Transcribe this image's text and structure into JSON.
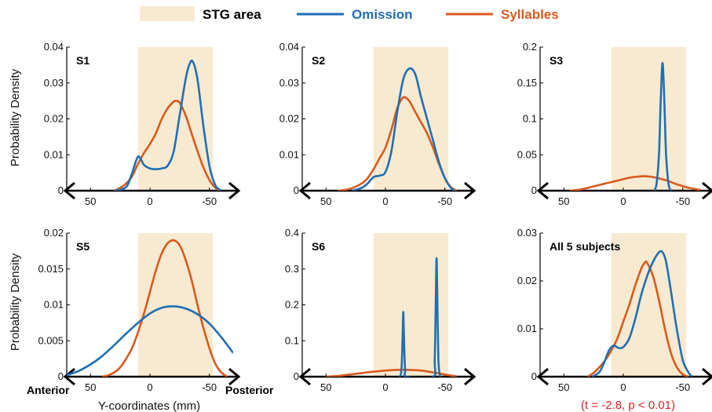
{
  "legend": {
    "stg_label": "STG area",
    "omission_label": "Omission",
    "syllables_label": "Syllables"
  },
  "colors": {
    "stg_area": "#f8ead0",
    "omission": "#1f6fb5",
    "syllables": "#d95a1e",
    "stats": "#e0201c"
  },
  "labels": {
    "y_axis": "Probability Density",
    "x_axis": "Y-coordinates (mm)",
    "anterior": "Anterior",
    "posterior": "Posterior",
    "stats": "(t = -2.8, p < 0.01)"
  },
  "chart_data": [
    {
      "title": "S1",
      "type": "line",
      "xlim": [
        70,
        -70
      ],
      "xticks": [
        50,
        0,
        -50
      ],
      "xtick_labels": [
        "50",
        "0",
        "-50"
      ],
      "ylim": [
        0,
        0.04
      ],
      "yticks": [
        0,
        0.01,
        0.02,
        0.03,
        0.04
      ],
      "ytick_labels": [
        "0",
        "0.01",
        "0.02",
        "0.03",
        "0.04"
      ],
      "stg_area": [
        10,
        -53
      ],
      "series": [
        {
          "name": "Omission",
          "x": [
            29,
            20,
            16,
            12,
            10,
            8,
            5,
            0,
            -5,
            -10,
            -15,
            -20,
            -25,
            -30,
            -33,
            -36,
            -40,
            -45,
            -50,
            -55,
            -60
          ],
          "values": [
            0,
            0.001,
            0.004,
            0.008,
            0.0095,
            0.009,
            0.0072,
            0.0062,
            0.006,
            0.0062,
            0.007,
            0.011,
            0.021,
            0.031,
            0.035,
            0.036,
            0.031,
            0.018,
            0.007,
            0.0015,
            0
          ]
        },
        {
          "name": "Syllables",
          "x": [
            30,
            25,
            20,
            15,
            10,
            5,
            0,
            -5,
            -10,
            -15,
            -20,
            -22,
            -25,
            -30,
            -35,
            -40,
            -45,
            -50,
            -55,
            -58
          ],
          "values": [
            0,
            0.0008,
            0.002,
            0.004,
            0.0075,
            0.0105,
            0.013,
            0.016,
            0.02,
            0.023,
            0.0248,
            0.025,
            0.0245,
            0.021,
            0.016,
            0.011,
            0.0065,
            0.003,
            0.0008,
            0
          ]
        }
      ]
    },
    {
      "title": "S2",
      "type": "line",
      "xlim": [
        70,
        -70
      ],
      "xticks": [
        50,
        0,
        -50
      ],
      "xtick_labels": [
        "50",
        "0",
        "-50"
      ],
      "ylim": [
        0,
        0.04
      ],
      "yticks": [
        0,
        0.01,
        0.02,
        0.03,
        0.04
      ],
      "ytick_labels": [
        "0",
        "0.01",
        "0.02",
        "0.03",
        "0.04"
      ],
      "stg_area": [
        10,
        -53
      ],
      "series": [
        {
          "name": "Omission",
          "x": [
            28,
            20,
            15,
            10,
            5,
            0,
            -5,
            -10,
            -15,
            -20,
            -25,
            -30,
            -35,
            -40,
            -45,
            -50,
            -55,
            -58
          ],
          "values": [
            0,
            0.0008,
            0.002,
            0.0038,
            0.0042,
            0.0052,
            0.011,
            0.022,
            0.031,
            0.034,
            0.0325,
            0.026,
            0.02,
            0.014,
            0.008,
            0.0035,
            0.0008,
            0
          ]
        },
        {
          "name": "Syllables",
          "x": [
            40,
            30,
            20,
            15,
            10,
            5,
            0,
            -5,
            -10,
            -15,
            -20,
            -25,
            -30,
            -35,
            -40,
            -45,
            -50,
            -55,
            -60
          ],
          "values": [
            0,
            0.0005,
            0.002,
            0.0035,
            0.006,
            0.009,
            0.012,
            0.017,
            0.023,
            0.026,
            0.025,
            0.022,
            0.019,
            0.016,
            0.012,
            0.0075,
            0.0035,
            0.001,
            0
          ]
        }
      ]
    },
    {
      "title": "S3",
      "type": "line",
      "xlim": [
        70,
        -70
      ],
      "xticks": [
        50,
        0,
        -50
      ],
      "xtick_labels": [
        "50",
        "0",
        "-50"
      ],
      "ylim": [
        0,
        0.2
      ],
      "yticks": [
        0,
        0.05,
        0.1,
        0.15,
        0.2
      ],
      "ytick_labels": [
        "0",
        "0.05",
        "0.1",
        "0.15",
        "0.2"
      ],
      "stg_area": [
        10,
        -53
      ],
      "series": [
        {
          "name": "Omission",
          "x": [
            -26,
            -28,
            -30,
            -31,
            -32,
            -33,
            -34,
            -35,
            -36,
            -38,
            -40
          ],
          "values": [
            0,
            0.01,
            0.05,
            0.1,
            0.15,
            0.178,
            0.15,
            0.1,
            0.05,
            0.01,
            0
          ]
        },
        {
          "name": "Syllables",
          "x": [
            45,
            35,
            25,
            15,
            5,
            -5,
            -15,
            -20,
            -25,
            -35,
            -45,
            -55,
            -65
          ],
          "values": [
            0,
            0.002,
            0.006,
            0.01,
            0.014,
            0.018,
            0.02,
            0.02,
            0.019,
            0.015,
            0.009,
            0.004,
            0.001
          ]
        }
      ]
    },
    {
      "title": "S5",
      "type": "line",
      "xlim": [
        70,
        -70
      ],
      "xticks": [
        50,
        0,
        -50
      ],
      "xtick_labels": [
        "50",
        "0",
        "-50"
      ],
      "ylim": [
        0,
        0.02
      ],
      "yticks": [
        0,
        0.005,
        0.01,
        0.015,
        0.02
      ],
      "ytick_labels": [
        "0",
        "0.005",
        "0.01",
        "0.015",
        "0.02"
      ],
      "stg_area": [
        10,
        -53
      ],
      "series": [
        {
          "name": "Omission",
          "x": [
            70,
            60,
            50,
            40,
            30,
            20,
            10,
            0,
            -10,
            -20,
            -30,
            -40,
            -50,
            -60,
            -70
          ],
          "values": [
            0.0002,
            0.0008,
            0.0017,
            0.0029,
            0.0044,
            0.006,
            0.0075,
            0.0088,
            0.0096,
            0.0098,
            0.0095,
            0.0087,
            0.0074,
            0.0055,
            0.0033
          ]
        },
        {
          "name": "Syllables",
          "x": [
            40,
            35,
            30,
            25,
            20,
            15,
            10,
            5,
            0,
            -5,
            -10,
            -15,
            -20,
            -25,
            -30,
            -35,
            -40,
            -45,
            -50,
            -55,
            -60,
            -65
          ],
          "values": [
            0,
            0.0002,
            0.0006,
            0.0013,
            0.0025,
            0.004,
            0.0062,
            0.0088,
            0.0118,
            0.0148,
            0.0172,
            0.0186,
            0.019,
            0.0183,
            0.0163,
            0.0135,
            0.01,
            0.0068,
            0.004,
            0.0018,
            0.0006,
            0
          ]
        }
      ]
    },
    {
      "title": "S6",
      "type": "line",
      "xlim": [
        70,
        -70
      ],
      "xticks": [
        50,
        0,
        -50
      ],
      "xtick_labels": [
        "50",
        "0",
        "-50"
      ],
      "ylim": [
        0,
        0.4
      ],
      "yticks": [
        0,
        0.1,
        0.2,
        0.3,
        0.4
      ],
      "ytick_labels": [
        "0",
        "0.1",
        "0.2",
        "0.3",
        "0.4"
      ],
      "stg_area": [
        10,
        -53
      ],
      "series": [
        {
          "name": "Omission",
          "x": [
            -12,
            -13.5,
            -14.5,
            -15,
            -15.5,
            -16.5,
            -18,
            -40,
            -41.5,
            -42.5,
            -43,
            -43.5,
            -44.5,
            -46
          ],
          "values": [
            0,
            0.02,
            0.12,
            0.18,
            0.12,
            0.02,
            0,
            0,
            0.05,
            0.25,
            0.33,
            0.25,
            0.05,
            0
          ]
        },
        {
          "name": "Syllables",
          "x": [
            50,
            40,
            30,
            20,
            10,
            0,
            -10,
            -20,
            -30,
            -40,
            -50,
            -60
          ],
          "values": [
            0,
            0.002,
            0.006,
            0.01,
            0.014,
            0.017,
            0.019,
            0.019,
            0.017,
            0.012,
            0.006,
            0.001
          ]
        }
      ]
    },
    {
      "title": "All 5 subjects",
      "type": "line",
      "xlim": [
        70,
        -70
      ],
      "xticks": [
        50,
        0,
        -50
      ],
      "xtick_labels": [
        "50",
        "0",
        "-50"
      ],
      "ylim": [
        0,
        0.03
      ],
      "yticks": [
        0,
        0.01,
        0.02,
        0.03
      ],
      "ytick_labels": [
        "0",
        "0.01",
        "0.02",
        "0.03"
      ],
      "stg_area": [
        10,
        -53
      ],
      "series": [
        {
          "name": "Omission",
          "x": [
            26,
            20,
            16,
            12,
            8,
            4,
            0,
            -5,
            -10,
            -15,
            -20,
            -25,
            -30,
            -33,
            -36,
            -40,
            -45,
            -50,
            -55,
            -58
          ],
          "values": [
            0,
            0.001,
            0.003,
            0.0055,
            0.0065,
            0.006,
            0.0062,
            0.008,
            0.012,
            0.017,
            0.021,
            0.024,
            0.026,
            0.026,
            0.024,
            0.018,
            0.01,
            0.0035,
            0.0008,
            0
          ]
        },
        {
          "name": "Syllables",
          "x": [
            30,
            25,
            20,
            15,
            10,
            5,
            0,
            -5,
            -10,
            -15,
            -18,
            -20,
            -25,
            -30,
            -35,
            -40,
            -45,
            -50,
            -55
          ],
          "values": [
            0,
            0.0008,
            0.002,
            0.0035,
            0.0055,
            0.008,
            0.0115,
            0.015,
            0.019,
            0.0225,
            0.0238,
            0.0238,
            0.021,
            0.016,
            0.01,
            0.005,
            0.002,
            0.0005,
            0
          ]
        }
      ]
    }
  ]
}
